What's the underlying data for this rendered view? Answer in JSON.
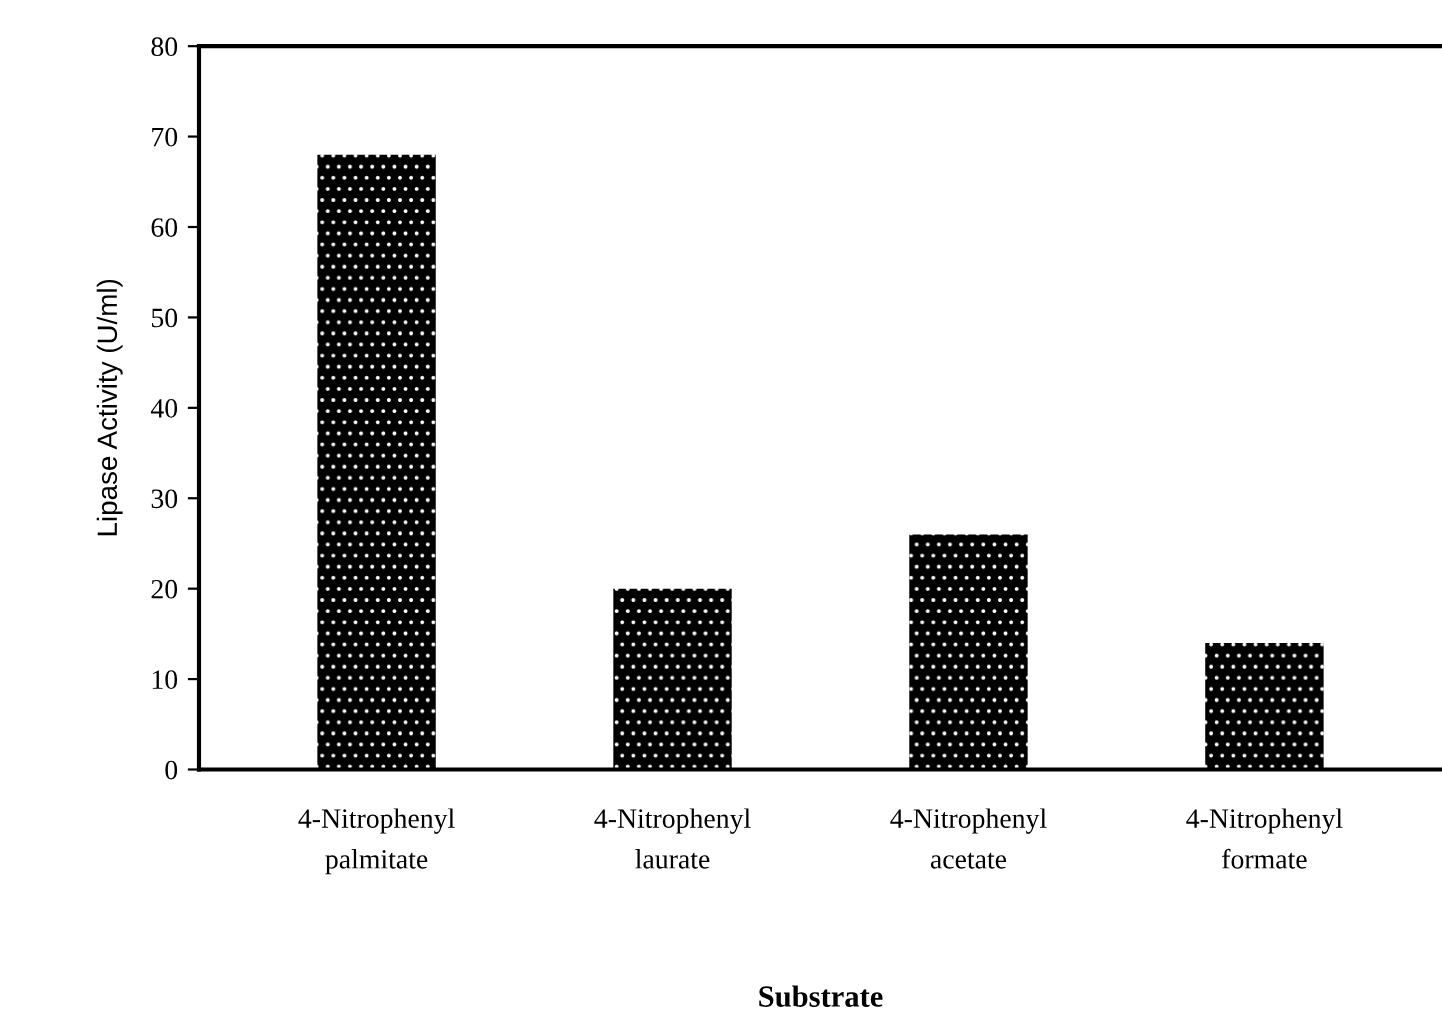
{
  "chart_data": {
    "type": "bar",
    "xlabel": "Substrate",
    "ylabel": "Lipase Activity (U/ml)",
    "categories": [
      "4-Nitrophenyl\npalmitate",
      "4-Nitrophenyl\nlaurate",
      "4-Nitrophenyl\nacetate",
      "4-Nitrophenyl\nformate"
    ],
    "values": [
      68,
      20,
      26,
      14
    ],
    "color": "#000000",
    "ylim": [
      0,
      80
    ],
    "yticks": [
      0,
      10,
      20,
      30,
      40,
      50,
      60,
      70,
      80
    ],
    "grid": false
  }
}
